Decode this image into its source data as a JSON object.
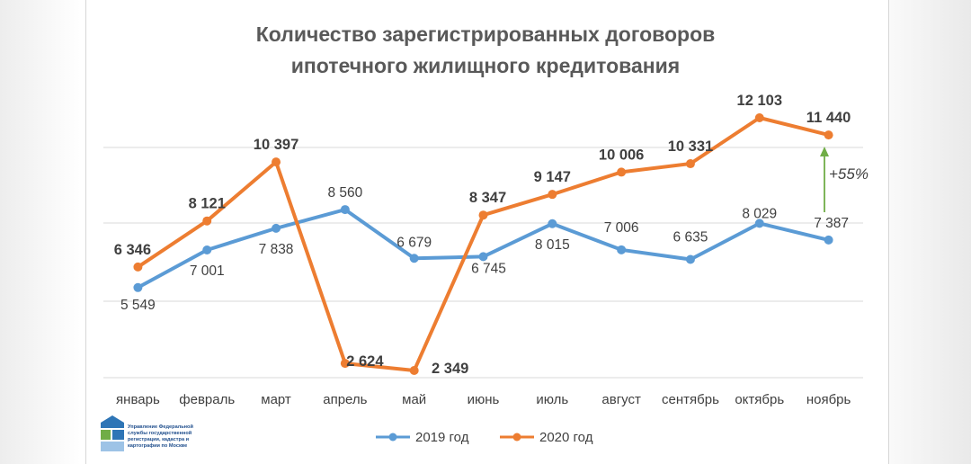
{
  "chart_data": {
    "type": "line",
    "title": [
      "Количество зарегистрированных договоров",
      "ипотечного жилищного кредитования"
    ],
    "categories": [
      "январь",
      "февраль",
      "март",
      "апрель",
      "май",
      "июнь",
      "июль",
      "август",
      "сентябрь",
      "октябрь",
      "ноябрь"
    ],
    "series": [
      {
        "name": "2019 год",
        "color": "#5b9bd5",
        "values": [
          5549,
          7001,
          7838,
          8560,
          6679,
          6745,
          8015,
          7006,
          6635,
          8029,
          7387
        ],
        "labels": [
          "5 549",
          "7 001",
          "7 838",
          "8 560",
          "6 679",
          "6 745",
          "8 015",
          "7 006",
          "6 635",
          "8 029",
          "7 387"
        ]
      },
      {
        "name": "2020 год",
        "color": "#ed7d31",
        "values": [
          6346,
          8121,
          10397,
          2624,
          2349,
          8347,
          9147,
          10006,
          10331,
          12103,
          11440
        ],
        "labels": [
          "6 346",
          "8 121",
          "10 397",
          "2 624",
          "2 349",
          "8 347",
          "9 147",
          "10 006",
          "10 331",
          "12 103",
          "11 440"
        ]
      }
    ],
    "annotation": {
      "text": "+55%",
      "color": "#70ad47"
    },
    "grid": true,
    "legend_position": "bottom"
  },
  "logo": {
    "text_lines": [
      "Управление Федеральной",
      "службы государственной",
      "регистрации, кадастра и",
      "картографии по Москве"
    ]
  }
}
